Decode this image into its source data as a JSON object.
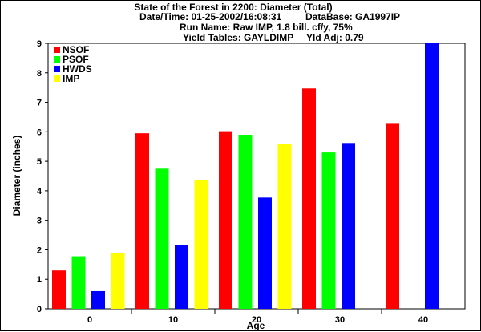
{
  "header": {
    "title": "State of the Forest in 2200: Diameter (Total)",
    "datetime": "Date/Time: 01-25-2002/16:08:31",
    "database": "DataBase: GA1997IP",
    "run_name": "Run Name: Raw IMP, 1.8 bill. cf/y, 75%",
    "yield_tables": "Yield Tables: GAYLDIMP",
    "yld_adj": "Yld Adj: 0.79"
  },
  "chart_data": {
    "type": "bar",
    "categories": [
      "0",
      "10",
      "20",
      "30",
      "40"
    ],
    "series": [
      {
        "name": "NSOF",
        "color": "#ff0000",
        "values": [
          1.3,
          5.95,
          6.02,
          7.47,
          6.27
        ]
      },
      {
        "name": "PSOF",
        "color": "#00ff00",
        "values": [
          1.78,
          4.75,
          5.9,
          5.3,
          null
        ]
      },
      {
        "name": "HWDS",
        "color": "#0000ff",
        "values": [
          0.6,
          2.15,
          3.77,
          5.62,
          9.0
        ]
      },
      {
        "name": "IMP",
        "color": "#ffff00",
        "values": [
          1.9,
          4.37,
          5.6,
          null,
          null
        ]
      }
    ],
    "xlabel": "Age",
    "ylabel": "Diameter (inches)",
    "ylim": [
      0,
      9
    ],
    "yticks": [
      "0",
      "1",
      "2",
      "3",
      "4",
      "5",
      "6",
      "7",
      "8",
      "9"
    ],
    "legend_position": "top-left",
    "grid": false
  }
}
